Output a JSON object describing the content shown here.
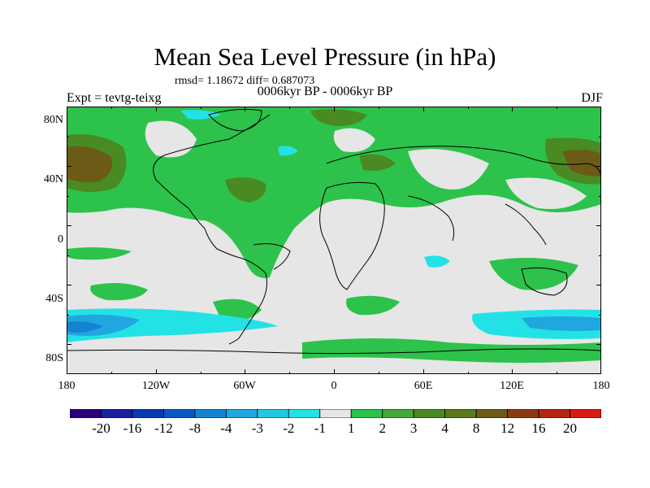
{
  "title": "Mean Sea Level Pressure (in hPa)",
  "stats": "rmsd= 1.18672 diff= 0.687073",
  "period": "0006kyr BP - 0006kyr BP",
  "experiment": "Expt = tevtg-teixg",
  "season": "DJF",
  "y_ticks": [
    "80N",
    "40N",
    "0",
    "40S",
    "80S"
  ],
  "x_ticks": [
    "180",
    "120W",
    "60W",
    "0",
    "60E",
    "120E",
    "180"
  ],
  "colorbar": {
    "colors": [
      "#2b007a",
      "#1c1f9e",
      "#0a3cb0",
      "#0a59c2",
      "#1484d0",
      "#21a7df",
      "#23c7e4",
      "#23e2e6",
      "#e6e6e6",
      "#2dc24b",
      "#45a83a",
      "#4a8a22",
      "#5a7a1a",
      "#6b5b16",
      "#8b3b14",
      "#b42514",
      "#d81b14"
    ],
    "labels": [
      "-20",
      "-16",
      "-12",
      "-8",
      "-4",
      "-3",
      "-2",
      "-1",
      "1",
      "2",
      "3",
      "4",
      "8",
      "12",
      "16",
      "20"
    ]
  },
  "palette": {
    "background": "#e6e6e6",
    "green": "#2dc24b",
    "dark_green": "#4a8a22",
    "olive": "#6b5b16",
    "cyan": "#23e2e6",
    "light_blue": "#21a7df",
    "mid_blue": "#1484d0"
  }
}
